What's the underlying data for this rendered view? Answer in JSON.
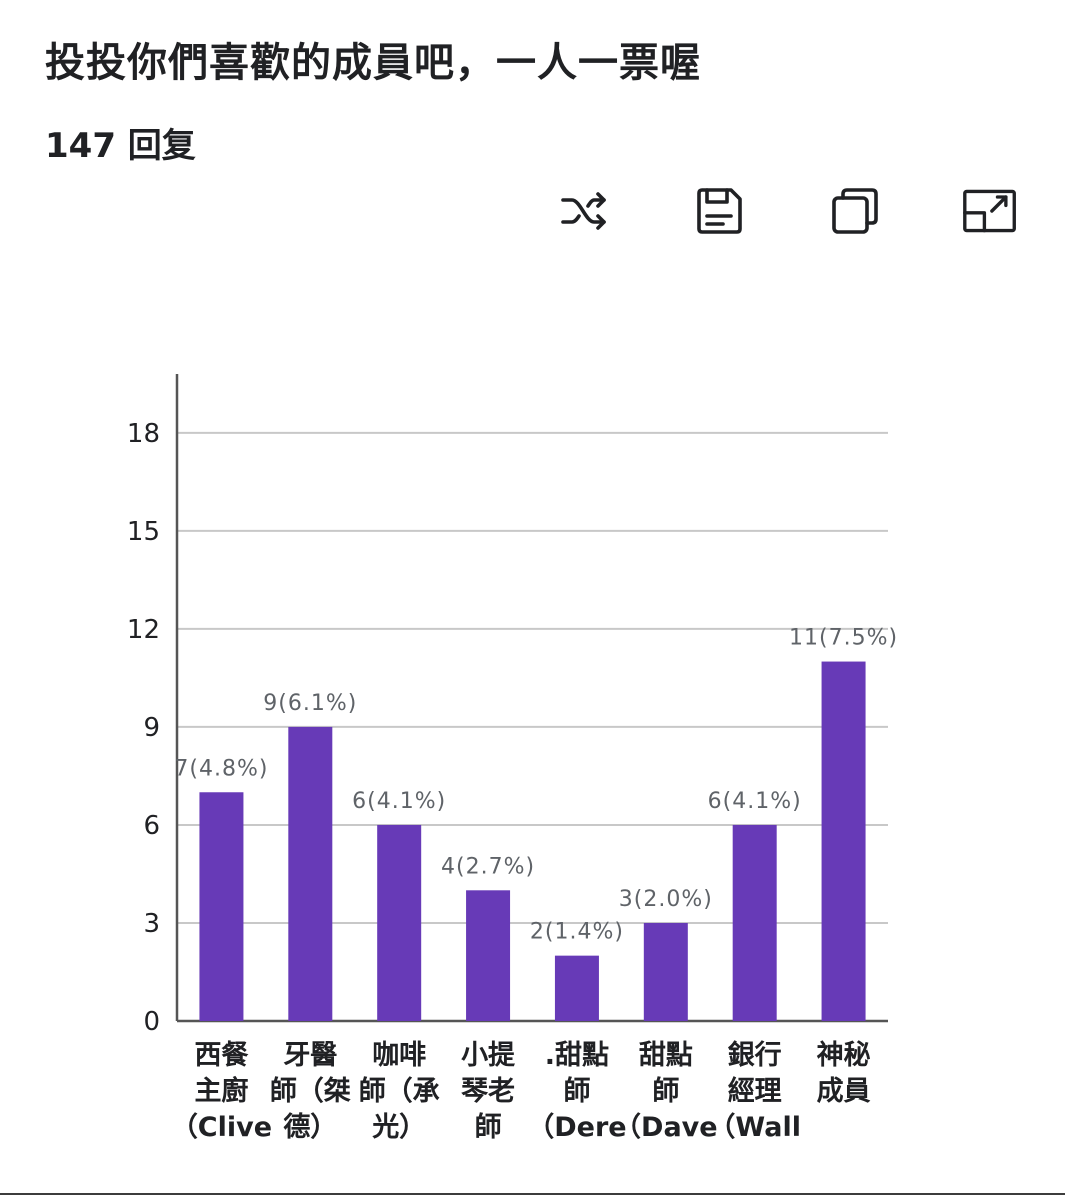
{
  "form": {
    "title": "投投你們喜歡的成員吧，一人一票喔",
    "responses": "147 回复"
  },
  "toolbar": {
    "icons": [
      "shuffle-icon",
      "save-icon",
      "copy-icon",
      "expand-icon"
    ]
  },
  "colors": {
    "bar": "#673ab7",
    "grid": "#c8c8c8",
    "axis": "#555555",
    "label": "#5f6368",
    "text": "#202124"
  },
  "chart_data": {
    "type": "bar",
    "categories": [
      [
        "西餐",
        "主廚",
        "（Clive"
      ],
      [
        "牙醫",
        "師（桀",
        "德）"
      ],
      [
        "咖啡",
        "師（承",
        "光）"
      ],
      [
        "小提",
        "琴老",
        "師"
      ],
      [
        ".甜點",
        "師",
        "（Dere"
      ],
      [
        "甜點",
        "師",
        "（Dave"
      ],
      [
        "銀行",
        "經理",
        "（Wall"
      ],
      [
        "神秘",
        "成員"
      ]
    ],
    "values": [
      7,
      9,
      6,
      4,
      2,
      3,
      6,
      11
    ],
    "data_labels": [
      "7(4.8%)",
      "9(6.1%)",
      "6(4.1%)",
      "4(2.7%)",
      "2(1.4%)",
      "3(2.0%)",
      "6(4.1%)",
      "11(7.5%)"
    ],
    "yticks": [
      0,
      3,
      6,
      9,
      12,
      15,
      18
    ],
    "ylim": [
      0,
      19.8
    ],
    "grid": true
  }
}
